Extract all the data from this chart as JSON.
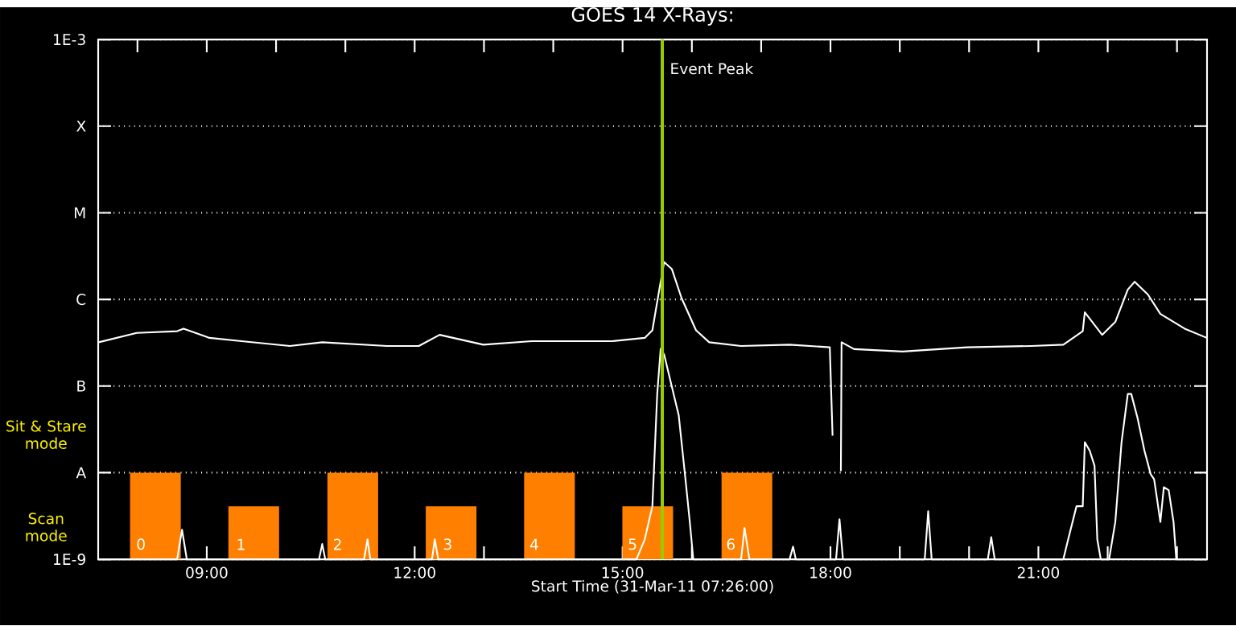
{
  "chart_data": {
    "type": "line",
    "title": "GOES 14 X-Rays:",
    "xlabel": "Start Time (31-Mar-11 07:26:00)",
    "log": "y",
    "grid": "y",
    "xlim": [
      7.4333,
      23.4333
    ],
    "ylim": [
      1e-09,
      0.001
    ],
    "xticks": [
      {
        "value": 8,
        "label": null
      },
      {
        "value": 9,
        "label": "09:00"
      },
      {
        "value": 10,
        "label": null
      },
      {
        "value": 11,
        "label": null
      },
      {
        "value": 12,
        "label": "12:00"
      },
      {
        "value": 13,
        "label": null
      },
      {
        "value": 14,
        "label": null
      },
      {
        "value": 15,
        "label": "15:00"
      },
      {
        "value": 16,
        "label": null
      },
      {
        "value": 17,
        "label": null
      },
      {
        "value": 18,
        "label": "18:00"
      },
      {
        "value": 19,
        "label": null
      },
      {
        "value": 20,
        "label": null
      },
      {
        "value": 21,
        "label": "21:00"
      },
      {
        "value": 22,
        "label": null
      },
      {
        "value": 23,
        "label": null
      }
    ],
    "yticks": [
      {
        "value": 1e-09,
        "label": "1E-9"
      },
      {
        "value": 1e-08,
        "label": "A"
      },
      {
        "value": 1e-07,
        "label": "B"
      },
      {
        "value": 1e-06,
        "label": "C"
      },
      {
        "value": 1e-05,
        "label": "M"
      },
      {
        "value": 0.0001,
        "label": "X"
      },
      {
        "value": 0.001,
        "label": "1E-3"
      }
    ],
    "series": [
      {
        "type": "bar",
        "color": "#ff8000",
        "x": [
          8.259,
          9.678,
          11.107,
          12.526,
          13.945,
          15.363,
          16.794
        ],
        "values": [
          1e-08,
          4.1e-09,
          1e-08,
          4.1e-09,
          1e-08,
          4.1e-09,
          1e-08
        ]
      },
      {
        "color": "#ffffff",
        "x": [
          7.44,
          7.99,
          8.573,
          8.666,
          9.038,
          9.503,
          10.2,
          10.666,
          11.6,
          12.06,
          12.36,
          12.99,
          13.69,
          14.85,
          15.32,
          15.43,
          15.53,
          15.6,
          15.71,
          15.85,
          16.06,
          16.25,
          16.71,
          17.41,
          17.99,
          18.03,
          18.1,
          18.15,
          18.16,
          18.34,
          19.04,
          19.97,
          20.9,
          21.36,
          21.64,
          21.67,
          21.92,
          22.11,
          22.29,
          22.39,
          22.58,
          22.76,
          23.11,
          23.43
        ],
        "values": [
          3.2e-07,
          4.1e-07,
          4.3e-07,
          4.6e-07,
          3.6e-07,
          3.3e-07,
          2.9e-07,
          3.2e-07,
          2.9e-07,
          2.9e-07,
          3.9e-07,
          3e-07,
          3.3e-07,
          3.3e-07,
          3.6e-07,
          4.4e-07,
          1.3e-06,
          2.7e-06,
          2.25e-06,
          1.04e-06,
          4.4e-07,
          3.2e-07,
          2.9e-07,
          3e-07,
          2.8e-07,
          2.67e-08,
          null,
          1.04e-08,
          3.2e-07,
          2.67e-07,
          2.5e-07,
          2.8e-07,
          2.9e-07,
          3e-07,
          4.3e-07,
          7.1e-07,
          3.9e-07,
          5.5e-07,
          1.3e-06,
          1.6e-06,
          1.14e-06,
          6.8e-07,
          4.6e-07,
          3.6e-07
        ]
      },
      {
        "color": "#ffffff",
        "x": [
          7.44,
          8.573,
          8.643,
          8.712,
          10.62,
          10.666,
          10.71,
          11.27,
          11.32,
          11.36,
          12.25,
          12.29,
          12.34,
          15.2,
          15.32,
          15.43,
          15.5,
          15.55,
          15.6,
          15.81,
          15.9,
          15.97,
          16.02,
          16.71,
          16.76,
          16.83,
          17.41,
          17.46,
          17.5,
          18.08,
          18.13,
          18.18,
          19.36,
          19.41,
          19.46,
          20.27,
          20.32,
          20.37,
          21.36,
          21.43,
          21.55,
          21.64,
          21.67,
          21.74,
          21.81,
          21.85,
          21.9,
          22.02,
          22.11,
          22.2,
          22.29,
          22.34,
          22.43,
          22.53,
          22.62,
          22.67,
          22.71,
          22.76,
          22.81,
          22.88,
          22.95,
          22.99,
          23.43
        ],
        "values": [
          1e-09,
          1e-09,
          2.2e-09,
          1e-09,
          1e-09,
          1.5e-09,
          1e-09,
          1e-09,
          1.7e-09,
          1e-09,
          1e-09,
          1.7e-09,
          1e-09,
          1e-09,
          1.7e-09,
          4.1e-09,
          8.1e-08,
          2.7e-07,
          2.3e-07,
          4.6e-08,
          9.6e-09,
          2.7e-09,
          1e-09,
          1e-09,
          2.3e-09,
          1e-09,
          1e-09,
          1.4e-09,
          1e-09,
          1e-09,
          2.9e-09,
          1e-09,
          1e-09,
          3.6e-09,
          1e-09,
          1e-09,
          1.8e-09,
          1e-09,
          1e-09,
          1.7e-09,
          4.1e-09,
          4.1e-09,
          2.25e-08,
          1.8e-08,
          1.2e-08,
          1.7e-09,
          1e-09,
          1e-09,
          2.7e-09,
          2.25e-08,
          8.1e-08,
          8.1e-08,
          4.3e-08,
          1.8e-08,
          9.6e-09,
          8.4e-09,
          5.1e-09,
          2.7e-09,
          6.8e-09,
          6.3e-09,
          2.7e-09,
          1e-09,
          1e-09
        ]
      }
    ],
    "ref_lines": [
      {
        "axis": "x",
        "value": 15.573,
        "label": "Event Peak",
        "color": "#99cc00"
      }
    ],
    "annotations": [
      "Sit & Stare mode",
      "Scan mode",
      {
        "text": "0",
        "x": 7.945,
        "y": 1.2e-09
      },
      {
        "text": "1",
        "x": 9.387,
        "y": 1.2e-09
      },
      {
        "text": "2",
        "x": 10.782,
        "y": 1.2e-09
      },
      {
        "text": "3",
        "x": 12.37,
        "y": 1.2e-09
      },
      {
        "text": "4",
        "x": 13.619,
        "y": 1.2e-09
      },
      {
        "text": "5",
        "x": 15.038,
        "y": 1.2e-09
      },
      {
        "text": "6",
        "x": 16.456,
        "y": 1.2e-09
      }
    ]
  }
}
